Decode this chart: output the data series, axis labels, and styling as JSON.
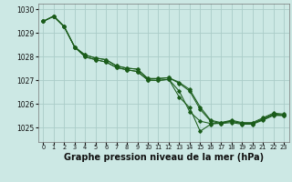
{
  "background_color": "#cce8e4",
  "grid_color": "#aaccc8",
  "line_color": "#1a5c1a",
  "xlabel": "Graphe pression niveau de la mer (hPa)",
  "xlabel_fontsize": 7.0,
  "ylim": [
    1024.4,
    1030.25
  ],
  "xlim": [
    -0.5,
    23.5
  ],
  "yticks": [
    1025,
    1026,
    1027,
    1028,
    1029,
    1030
  ],
  "ytick_fontsize": 5.5,
  "xtick_fontsize": 4.8,
  "xtick_labels": [
    "0",
    "1",
    "2",
    "3",
    "4",
    "5",
    "6",
    "7",
    "8",
    "9",
    "10",
    "11",
    "12",
    "13",
    "14",
    "15",
    "16",
    "17",
    "18",
    "19",
    "20",
    "21",
    "22",
    "23"
  ],
  "line1": [
    1029.5,
    1029.72,
    1029.28,
    1028.42,
    1028.0,
    1027.88,
    1027.78,
    1027.55,
    1027.45,
    1027.38,
    1027.02,
    1027.0,
    1027.05,
    1026.3,
    1025.85,
    1024.85,
    1025.15,
    1025.22,
    1025.28,
    1025.18,
    1025.18,
    1025.35,
    1025.55,
    1025.52
  ],
  "line2": [
    1029.5,
    1029.72,
    1029.28,
    1028.42,
    1028.0,
    1027.88,
    1027.78,
    1027.55,
    1027.45,
    1027.38,
    1027.02,
    1027.0,
    1027.05,
    1026.55,
    1025.68,
    1025.28,
    1025.18,
    1025.18,
    1025.22,
    1025.15,
    1025.15,
    1025.32,
    1025.52,
    1025.52
  ],
  "line3": [
    1029.5,
    1029.72,
    1029.28,
    1028.42,
    1028.08,
    1027.95,
    1027.88,
    1027.62,
    1027.52,
    1027.48,
    1027.08,
    1027.08,
    1027.12,
    1026.88,
    1026.55,
    1025.78,
    1025.28,
    1025.18,
    1025.28,
    1025.18,
    1025.18,
    1025.38,
    1025.58,
    1025.55
  ],
  "line4": [
    1029.5,
    1029.72,
    1029.28,
    1028.42,
    1028.08,
    1027.95,
    1027.88,
    1027.62,
    1027.52,
    1027.48,
    1027.08,
    1027.08,
    1027.12,
    1026.92,
    1026.62,
    1025.88,
    1025.32,
    1025.22,
    1025.32,
    1025.22,
    1025.22,
    1025.42,
    1025.62,
    1025.58
  ]
}
